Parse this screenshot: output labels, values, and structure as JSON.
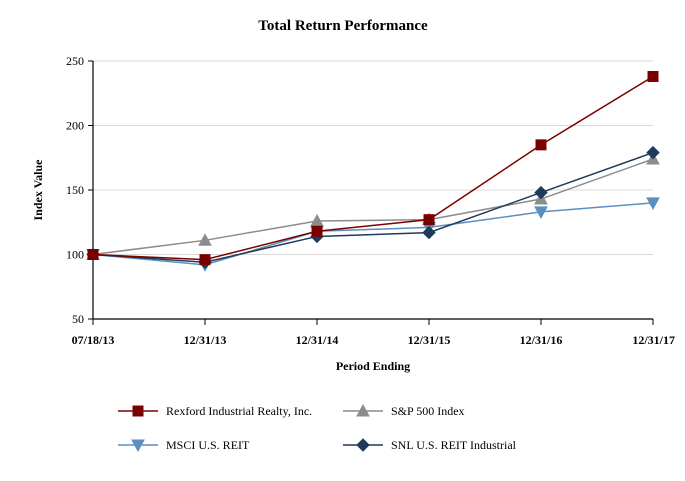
{
  "chart_data": {
    "type": "line",
    "title": "Total Return Performance",
    "xlabel": "Period Ending",
    "ylabel": "Index Value",
    "categories": [
      "07/18/13",
      "12/31/13",
      "12/31/14",
      "12/31/15",
      "12/31/16",
      "12/31/17"
    ],
    "yticks": [
      "50",
      "100",
      "150",
      "200",
      "250"
    ],
    "ylim": [
      50,
      250
    ],
    "grid": true,
    "legend_position": "bottom",
    "series": [
      {
        "name": "Rexford Industrial Realty, Inc.",
        "values": [
          100,
          96,
          118,
          127,
          185,
          238
        ],
        "color": "#7a0000",
        "marker": "square"
      },
      {
        "name": "S&P 500 Index",
        "values": [
          100,
          111,
          126,
          127,
          143,
          174
        ],
        "color": "#8c8c8c",
        "marker": "triangle-up"
      },
      {
        "name": "MSCI U.S. REIT",
        "values": [
          100,
          92,
          118,
          121,
          133,
          140
        ],
        "color": "#5b8fbf",
        "marker": "triangle-down"
      },
      {
        "name": "SNL U.S. REIT Industrial",
        "values": [
          100,
          94,
          114,
          117,
          148,
          179
        ],
        "color": "#1f3a5a",
        "marker": "diamond"
      }
    ]
  }
}
